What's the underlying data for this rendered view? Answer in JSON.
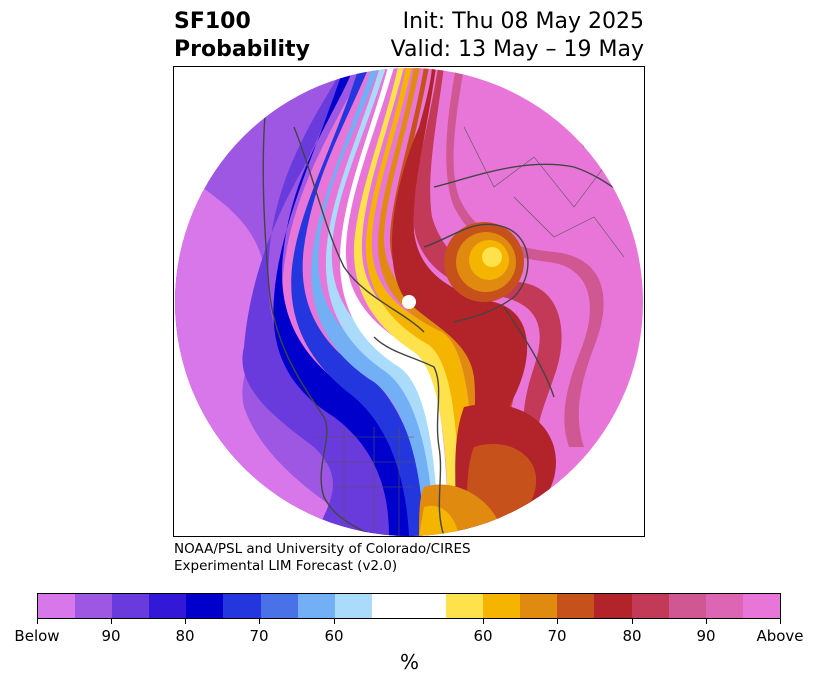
{
  "title": {
    "left_line1": "SF100",
    "left_line2": "Probability",
    "right_line1": "Init: Thu 08 May 2025",
    "right_line2": "Valid: 13 May – 19 May"
  },
  "credit": {
    "line1": "NOAA/PSL and University of Colorado/CIRES",
    "line2": "Experimental LIM Forecast (v2.0)"
  },
  "colorbar": {
    "colors": [
      "#d777ea",
      "#9d57e3",
      "#6a3bdc",
      "#3418d7",
      "#0000cd",
      "#2436de",
      "#4a72e8",
      "#73aff4",
      "#aadbfb",
      "#ffffff",
      "#ffffff",
      "#fde24c",
      "#f4b400",
      "#e08a10",
      "#c6511a",
      "#b2232a",
      "#c23a57",
      "#cf5893",
      "#dd66b4",
      "#e876d9"
    ],
    "tick_labels": [
      "Below",
      "90",
      "80",
      "70",
      "60",
      "60",
      "70",
      "80",
      "90",
      "Above"
    ],
    "unit": "%"
  },
  "map": {
    "legend_colors": {
      "below_strong": "#d777ea",
      "below_mid": "#6a3bdc",
      "below_core": "#0000cd",
      "below_light": "#73aff4",
      "neutral": "#ffffff",
      "above_light": "#fde24c",
      "above_orange": "#e08a10",
      "above_red": "#b2232a",
      "above_pink": "#cf5893",
      "above_strong": "#e876d9",
      "coast": "#444444"
    }
  }
}
